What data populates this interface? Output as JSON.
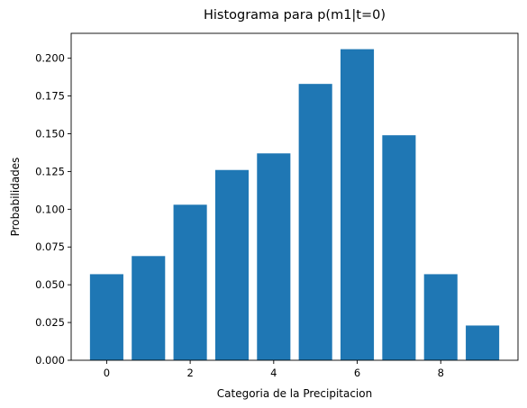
{
  "chart_data": {
    "type": "bar",
    "title": "Histograma para p(m1|t=0)",
    "xlabel": "Categoria de la Precipitacion",
    "ylabel": "Probabilidades",
    "categories": [
      0,
      1,
      2,
      3,
      4,
      5,
      6,
      7,
      8,
      9
    ],
    "values": [
      0.057,
      0.069,
      0.103,
      0.126,
      0.137,
      0.183,
      0.206,
      0.149,
      0.057,
      0.023
    ],
    "xlim": [
      -0.85,
      9.85
    ],
    "ylim": [
      0,
      0.2165
    ],
    "xticks": [
      "0",
      "2",
      "4",
      "6",
      "8"
    ],
    "yticks": [
      "0.000",
      "0.025",
      "0.050",
      "0.075",
      "0.100",
      "0.125",
      "0.150",
      "0.175",
      "0.200"
    ],
    "bar_color": "#1f77b4",
    "grid": false,
    "legend": "none"
  }
}
